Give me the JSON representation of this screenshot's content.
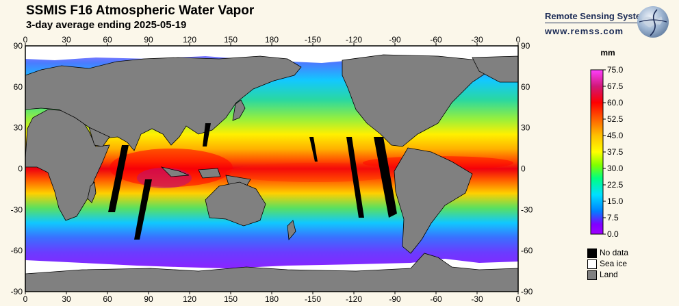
{
  "header": {
    "title": "SSMIS F16 Atmospheric Water Vapor",
    "subtitle": "3-day average ending 2025-05-19"
  },
  "brand": {
    "name": "Remote Sensing Systems",
    "url": "www.remss.com"
  },
  "map": {
    "x_ticks": [
      "0",
      "30",
      "60",
      "90",
      "120",
      "150",
      "180",
      "-150",
      "-120",
      "-90",
      "-60",
      "-30",
      "0"
    ],
    "y_ticks": [
      "90",
      "60",
      "30",
      "0",
      "-30",
      "-60",
      "-90"
    ]
  },
  "colorbar": {
    "unit": "mm",
    "ticks": [
      "75.0",
      "67.5",
      "60.0",
      "52.5",
      "45.0",
      "37.5",
      "30.0",
      "22.5",
      "15.0",
      "7.5",
      "0.0"
    ],
    "colors": [
      "#ff40ff",
      "#d01878",
      "#ff0000",
      "#ff6000",
      "#ffc000",
      "#ffff00",
      "#80ff00",
      "#00ff80",
      "#00e0ff",
      "#0080ff",
      "#8000ff",
      "#a000ff"
    ]
  },
  "legend": [
    {
      "label": "No data",
      "color": "#000000"
    },
    {
      "label": "Sea ice",
      "color": "#ffffff"
    },
    {
      "label": "Land",
      "color": "#808080"
    }
  ]
}
